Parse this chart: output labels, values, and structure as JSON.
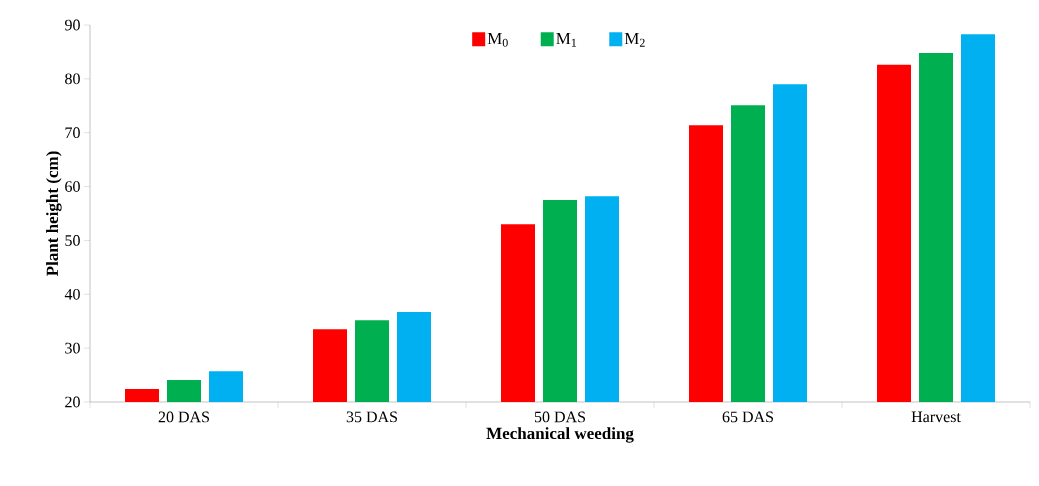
{
  "chart_data": {
    "type": "bar",
    "xlabel": "Mechanical weeding",
    "ylabel": "Plant height (cm)",
    "categories": [
      "20 DAS",
      "35 DAS",
      "50 DAS",
      "65 DAS",
      "Harvest"
    ],
    "series": [
      {
        "name": "M$_{0}$",
        "color": "#ff0000",
        "values": [
          22.4,
          33.5,
          53.0,
          71.4,
          82.6
        ]
      },
      {
        "name": "M$_{1}$",
        "color": "#00b050",
        "values": [
          24.1,
          35.2,
          57.5,
          75.1,
          84.8
        ]
      },
      {
        "name": "M$_{2}$",
        "color": "#00b0f0",
        "values": [
          25.7,
          36.7,
          58.2,
          79.0,
          88.3
        ]
      }
    ],
    "ylim": [
      20,
      90
    ],
    "yticks": [
      20,
      30,
      40,
      50,
      60,
      70,
      80,
      90
    ],
    "grid": false,
    "legend": "top"
  }
}
